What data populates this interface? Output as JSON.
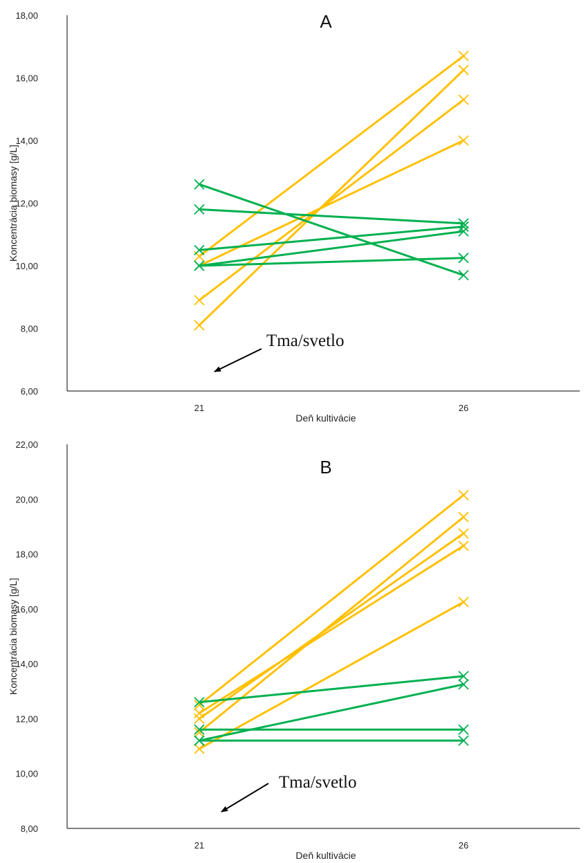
{
  "chart_data": [
    {
      "type": "line",
      "title": "A",
      "xlabel": "Deň kultivácie",
      "ylabel": "Koncentrácia biomasy [g/L]",
      "categories": [
        "21",
        "26"
      ],
      "ylim": [
        6,
        18
      ],
      "yticks": [
        "6,00",
        "8,00",
        "10,00",
        "12,00",
        "14,00",
        "16,00",
        "18,00"
      ],
      "annotation": "Tma/svetlo",
      "grid": false,
      "series": [
        {
          "color": "#FFC000",
          "values": [
            10.3,
            16.7
          ]
        },
        {
          "color": "#FFC000",
          "values": [
            8.1,
            16.25
          ]
        },
        {
          "color": "#FFC000",
          "values": [
            8.9,
            15.3
          ]
        },
        {
          "color": "#FFC000",
          "values": [
            10.0,
            14.0
          ]
        },
        {
          "color": "#00B050",
          "values": [
            12.6,
            9.7
          ]
        },
        {
          "color": "#00B050",
          "values": [
            11.8,
            11.35
          ]
        },
        {
          "color": "#00B050",
          "values": [
            10.5,
            11.25
          ]
        },
        {
          "color": "#00B050",
          "values": [
            10.0,
            11.1
          ]
        },
        {
          "color": "#00B050",
          "values": [
            10.0,
            10.25
          ]
        }
      ]
    },
    {
      "type": "line",
      "title": "B",
      "xlabel": "Deň kultivácie",
      "ylabel": "Koncentrácia biomasy [g/L]",
      "categories": [
        "21",
        "26"
      ],
      "ylim": [
        8,
        22
      ],
      "yticks": [
        "8,00",
        "10,00",
        "12,00",
        "14,00",
        "16,00",
        "18,00",
        "20,00",
        "22,00"
      ],
      "annotation": "Tma/svetlo",
      "grid": false,
      "series": [
        {
          "color": "#FFC000",
          "values": [
            12.5,
            20.15
          ]
        },
        {
          "color": "#FFC000",
          "values": [
            11.5,
            19.35
          ]
        },
        {
          "color": "#FFC000",
          "values": [
            12.0,
            18.75
          ]
        },
        {
          "color": "#FFC000",
          "values": [
            12.2,
            18.3
          ]
        },
        {
          "color": "#FFC000",
          "values": [
            10.9,
            16.25
          ]
        },
        {
          "color": "#00B050",
          "values": [
            12.6,
            13.55
          ]
        },
        {
          "color": "#00B050",
          "values": [
            11.2,
            13.25
          ]
        },
        {
          "color": "#00B050",
          "values": [
            11.6,
            11.6
          ]
        },
        {
          "color": "#00B050",
          "values": [
            11.2,
            11.2
          ]
        }
      ]
    }
  ]
}
